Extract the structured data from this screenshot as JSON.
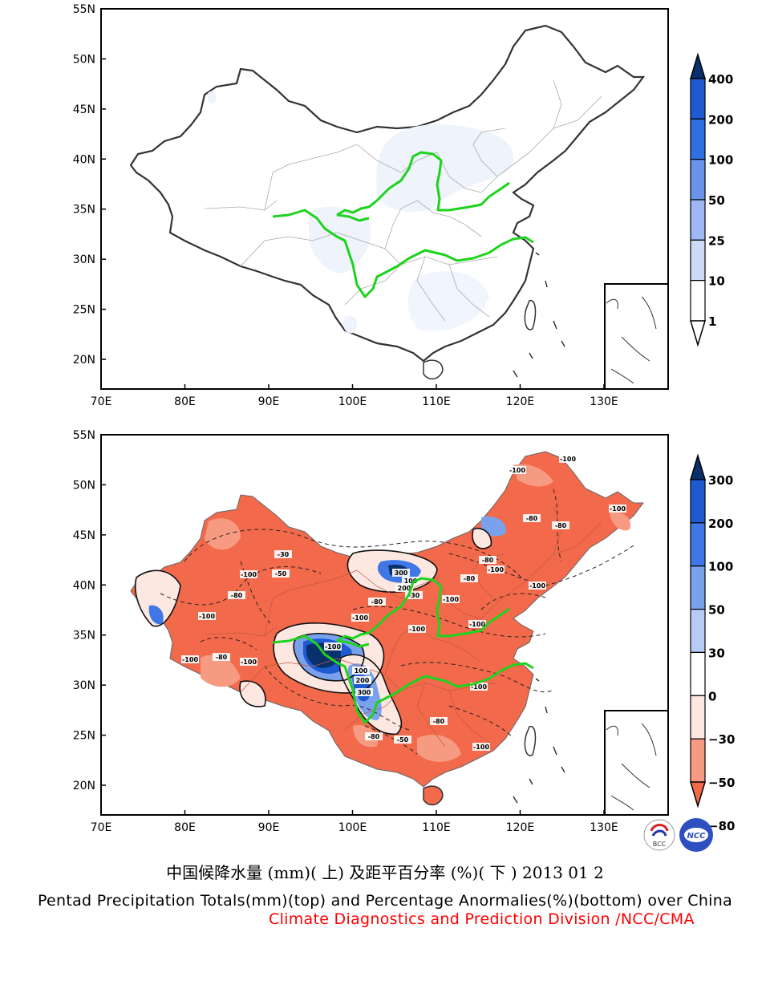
{
  "maps": [
    {
      "id": "top",
      "lat_ticks": [
        "55N",
        "50N",
        "45N",
        "40N",
        "35N",
        "30N",
        "25N",
        "20N"
      ],
      "lon_ticks": [
        "70E",
        "80E",
        "90E",
        "100E",
        "110E",
        "120E",
        "130E"
      ],
      "colorbar": {
        "labels": [
          "400",
          "200",
          "100",
          "50",
          "25",
          "10",
          "1"
        ],
        "colors": [
          "#08306b",
          "#1e5ad2",
          "#2f6fe0",
          "#6a94ea",
          "#9db8f2",
          "#cddbf8",
          "#ffffff"
        ]
      }
    },
    {
      "id": "bottom",
      "lat_ticks": [
        "55N",
        "50N",
        "45N",
        "40N",
        "35N",
        "30N",
        "25N",
        "20N"
      ],
      "lon_ticks": [
        "70E",
        "80E",
        "90E",
        "100E",
        "110E",
        "120E",
        "130E"
      ],
      "colorbar": {
        "labels": [
          "300",
          "200",
          "100",
          "50",
          "30",
          "0",
          "−30",
          "−50",
          "−80"
        ],
        "colors": [
          "#08306b",
          "#1e5ad2",
          "#3f78e6",
          "#7aa1ec",
          "#b7ccf4",
          "#ffffff",
          "#fde7e1",
          "#f79a82",
          "#f2694b"
        ]
      },
      "contour_labels": [
        "-100",
        "-100",
        "-100",
        "-80",
        "-80",
        "-100",
        "-100",
        "-30",
        "-50",
        "-100",
        "-80",
        "-100",
        "-100",
        "-80",
        "-100",
        "-80",
        "-100",
        "-100",
        "-100",
        "-30",
        "-80",
        "-100",
        "-80",
        "-80",
        "300",
        "200",
        "100",
        "300",
        "200",
        "100",
        "-100",
        "-50",
        "-80",
        "-100",
        "-100"
      ]
    }
  ],
  "logos": [
    {
      "name": "bcc-logo",
      "text": "BCC"
    },
    {
      "name": "ncc-logo",
      "text": "NCC"
    }
  ],
  "captions": {
    "chinese": "中国候降水量 (mm)( 上) 及距平百分率 (%)( 下 ) 2013 01 2",
    "english": "Pentad Precipitation Totals(mm)(top) and Percentage Anormalies(%)(bottom) over China",
    "org": "Climate Diagnostics and Prediction Division /NCC/CMA"
  }
}
